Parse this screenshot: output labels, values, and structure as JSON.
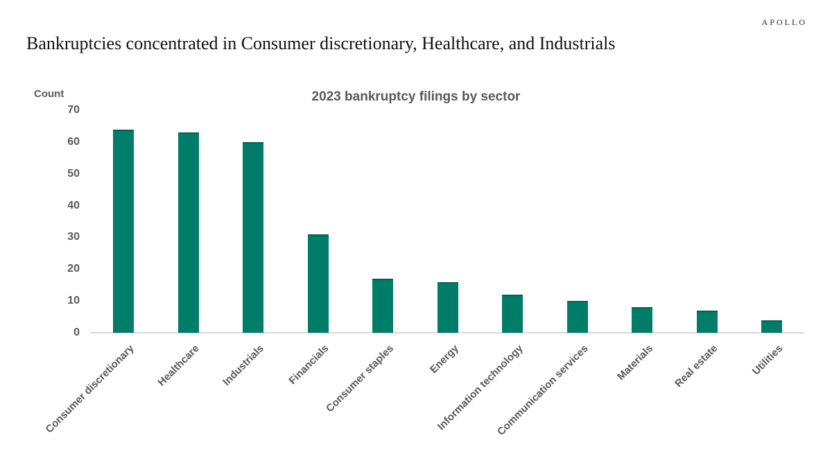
{
  "header": {
    "logo": "APOLLO",
    "title": "Bankruptcies concentrated in Consumer discretionary, Healthcare, and Industrials"
  },
  "chart_data": {
    "type": "bar",
    "title": "2023 bankruptcy filings by sector",
    "ylabel": "Count",
    "xlabel": "",
    "categories": [
      "Consumer discretionary",
      "Healthcare",
      "Industrials",
      "Financials",
      "Consumer staples",
      "Energy",
      "Information technology",
      "Communication services",
      "Materials",
      "Real estate",
      "Utilities"
    ],
    "values": [
      64,
      63,
      60,
      31,
      17,
      16,
      12,
      10,
      8,
      7,
      4
    ],
    "ylim": [
      0,
      70
    ],
    "yticks": [
      0,
      10,
      20,
      30,
      40,
      50,
      60,
      70
    ],
    "grid": false,
    "legend_position": "none",
    "bar_color": "#007D68",
    "axis_line_color": "#D9D9D9",
    "text_color": "#595959"
  }
}
